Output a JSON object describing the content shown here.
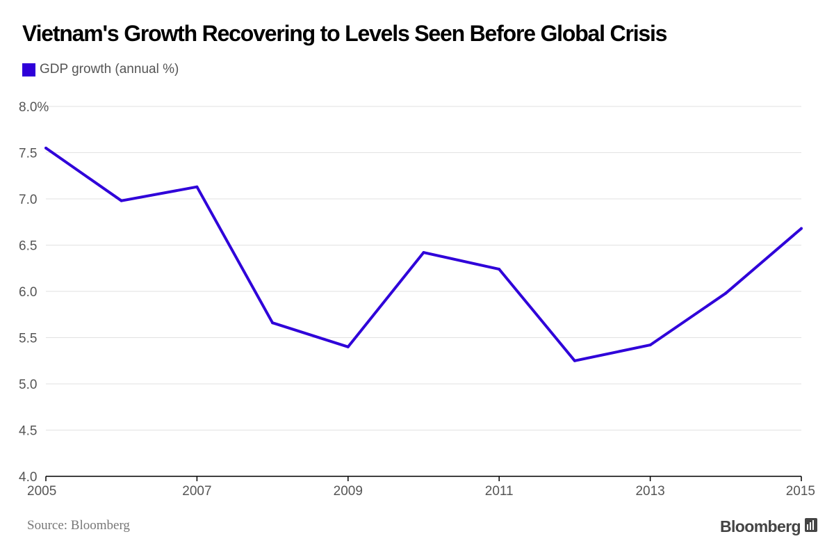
{
  "title": "Vietnam's Growth Recovering to Levels Seen Before Global Crisis",
  "legend": {
    "label": "GDP growth (annual %)"
  },
  "colors": {
    "series": "#2f00d9",
    "grid": "#e2e2e2",
    "axis": "#000000",
    "text": "#555555"
  },
  "source": "Source: Bloomberg",
  "brand": "Bloomberg",
  "chart_data": {
    "type": "line",
    "title": "Vietnam's Growth Recovering to Levels Seen Before Global Crisis",
    "xlabel": "",
    "ylabel": "",
    "x": [
      2005,
      2006,
      2007,
      2008,
      2009,
      2010,
      2011,
      2012,
      2013,
      2014,
      2015
    ],
    "series": [
      {
        "name": "GDP growth (annual %)",
        "values": [
          7.55,
          6.98,
          7.13,
          5.66,
          5.4,
          6.42,
          6.24,
          5.25,
          5.42,
          5.98,
          6.68
        ]
      }
    ],
    "xlim": [
      2005,
      2015
    ],
    "ylim": [
      4.0,
      8.0
    ],
    "x_ticks": [
      2005,
      2007,
      2009,
      2011,
      2013,
      2015
    ],
    "x_tick_labels": [
      "2005",
      "2007",
      "2009",
      "2011",
      "2013",
      "2015"
    ],
    "y_ticks": [
      4.0,
      4.5,
      5.0,
      5.5,
      6.0,
      6.5,
      7.0,
      7.5,
      8.0
    ],
    "y_tick_labels": [
      "4.0",
      "4.5",
      "5.0",
      "5.5",
      "6.0",
      "6.5",
      "7.0",
      "7.5",
      "8.0%"
    ],
    "grid": true,
    "legend_position": "top-left"
  }
}
